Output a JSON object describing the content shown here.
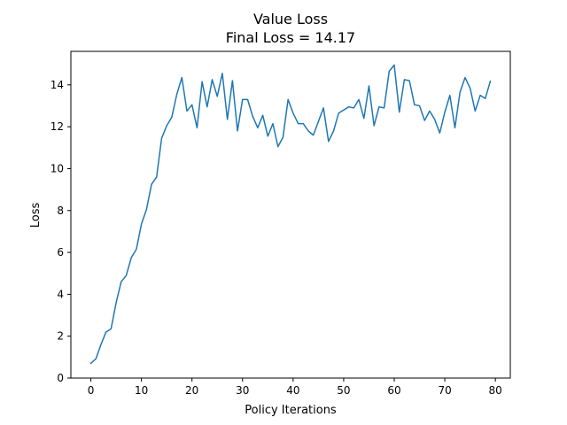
{
  "chart_data": {
    "type": "line",
    "title": "Value Loss",
    "subtitle": "Final Loss = 14.17",
    "xlabel": "Policy Iterations",
    "ylabel": "Loss",
    "xlim": [
      -3.95,
      82.95
    ],
    "ylim": [
      0,
      15.6
    ],
    "xticks": [
      0,
      10,
      20,
      30,
      40,
      50,
      60,
      70,
      80
    ],
    "yticks": [
      0,
      2,
      4,
      6,
      8,
      10,
      12,
      14
    ],
    "grid": false,
    "series": [
      {
        "color": "#1f77b4",
        "x": [
          0,
          1,
          2,
          3,
          4,
          5,
          6,
          7,
          8,
          9,
          10,
          11,
          12,
          13,
          14,
          15,
          16,
          17,
          18,
          19,
          20,
          21,
          22,
          23,
          24,
          25,
          26,
          27,
          28,
          29,
          30,
          31,
          32,
          33,
          34,
          35,
          36,
          37,
          38,
          39,
          40,
          41,
          42,
          43,
          44,
          45,
          46,
          47,
          48,
          49,
          50,
          51,
          52,
          53,
          54,
          55,
          56,
          57,
          58,
          59,
          60,
          61,
          62,
          63,
          64,
          65,
          66,
          67,
          68,
          69,
          70,
          71,
          72,
          73,
          74,
          75,
          76,
          77,
          78,
          79
        ],
        "values": [
          0.7,
          0.92,
          1.6,
          2.2,
          2.35,
          3.6,
          4.6,
          4.9,
          5.75,
          6.15,
          7.35,
          8.05,
          9.25,
          9.6,
          11.45,
          12.05,
          12.45,
          13.55,
          14.35,
          12.75,
          13.05,
          11.95,
          14.15,
          12.95,
          14.25,
          13.45,
          14.55,
          12.35,
          14.2,
          11.8,
          13.3,
          13.3,
          12.5,
          11.95,
          12.55,
          11.55,
          12.15,
          11.05,
          11.5,
          13.3,
          12.65,
          12.15,
          12.15,
          11.8,
          11.6,
          12.25,
          12.9,
          11.3,
          11.8,
          12.65,
          12.8,
          12.95,
          12.9,
          13.3,
          12.4,
          13.95,
          12.05,
          12.95,
          12.9,
          14.65,
          14.95,
          12.7,
          14.25,
          14.2,
          13.05,
          13.0,
          12.3,
          12.75,
          12.35,
          11.7,
          12.7,
          13.5,
          11.95,
          13.65,
          14.35,
          13.85,
          12.75,
          13.5,
          13.35,
          14.17
        ]
      }
    ]
  }
}
